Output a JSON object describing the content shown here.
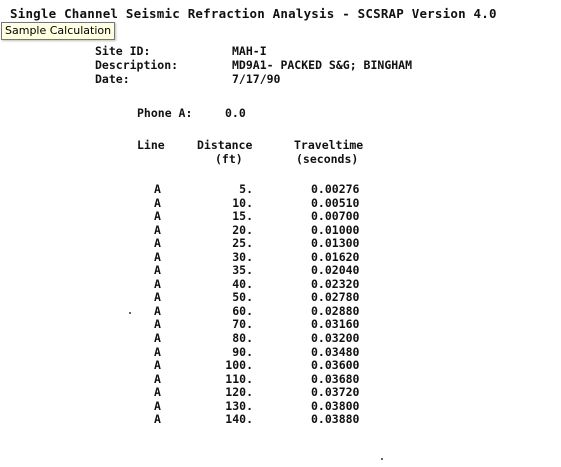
{
  "title": "Single Channel Seismic Refraction Analysis - SCSRAP Version 4.0",
  "tooltip": "Sample Calculation",
  "meta": [
    {
      "label": "Site ID:",
      "value": "MAH-I"
    },
    {
      "label": "Description:",
      "value": "MD9A1- PACKED S&G; BINGHAM"
    },
    {
      "label": "Date:",
      "value": "7/17/90"
    }
  ],
  "phone": {
    "label": "Phone A:",
    "value": "0.0"
  },
  "table": {
    "headers": {
      "line": "Line",
      "distance": "Distance",
      "distance_unit": "(ft)",
      "traveltime": "Traveltime",
      "traveltime_unit": "(seconds)"
    },
    "rows": [
      {
        "line": "A",
        "distance": "5.",
        "traveltime": "0.00276"
      },
      {
        "line": "A",
        "distance": "10.",
        "traveltime": "0.00510"
      },
      {
        "line": "A",
        "distance": "15.",
        "traveltime": "0.00700"
      },
      {
        "line": "A",
        "distance": "20.",
        "traveltime": "0.01000"
      },
      {
        "line": "A",
        "distance": "25.",
        "traveltime": "0.01300"
      },
      {
        "line": "A",
        "distance": "30.",
        "traveltime": "0.01620"
      },
      {
        "line": "A",
        "distance": "35.",
        "traveltime": "0.02040"
      },
      {
        "line": "A",
        "distance": "40.",
        "traveltime": "0.02320"
      },
      {
        "line": "A",
        "distance": "50.",
        "traveltime": "0.02780"
      },
      {
        "line": "A",
        "distance": "60.",
        "traveltime": "0.02880"
      },
      {
        "line": "A",
        "distance": "70.",
        "traveltime": "0.03160"
      },
      {
        "line": "A",
        "distance": "80.",
        "traveltime": "0.03200"
      },
      {
        "line": "A",
        "distance": "90.",
        "traveltime": "0.03480"
      },
      {
        "line": "A",
        "distance": "100.",
        "traveltime": "0.03600"
      },
      {
        "line": "A",
        "distance": "110.",
        "traveltime": "0.03680"
      },
      {
        "line": "A",
        "distance": "120.",
        "traveltime": "0.03720"
      },
      {
        "line": "A",
        "distance": "130.",
        "traveltime": "0.03800"
      },
      {
        "line": "A",
        "distance": "140.",
        "traveltime": "0.03880"
      }
    ]
  }
}
